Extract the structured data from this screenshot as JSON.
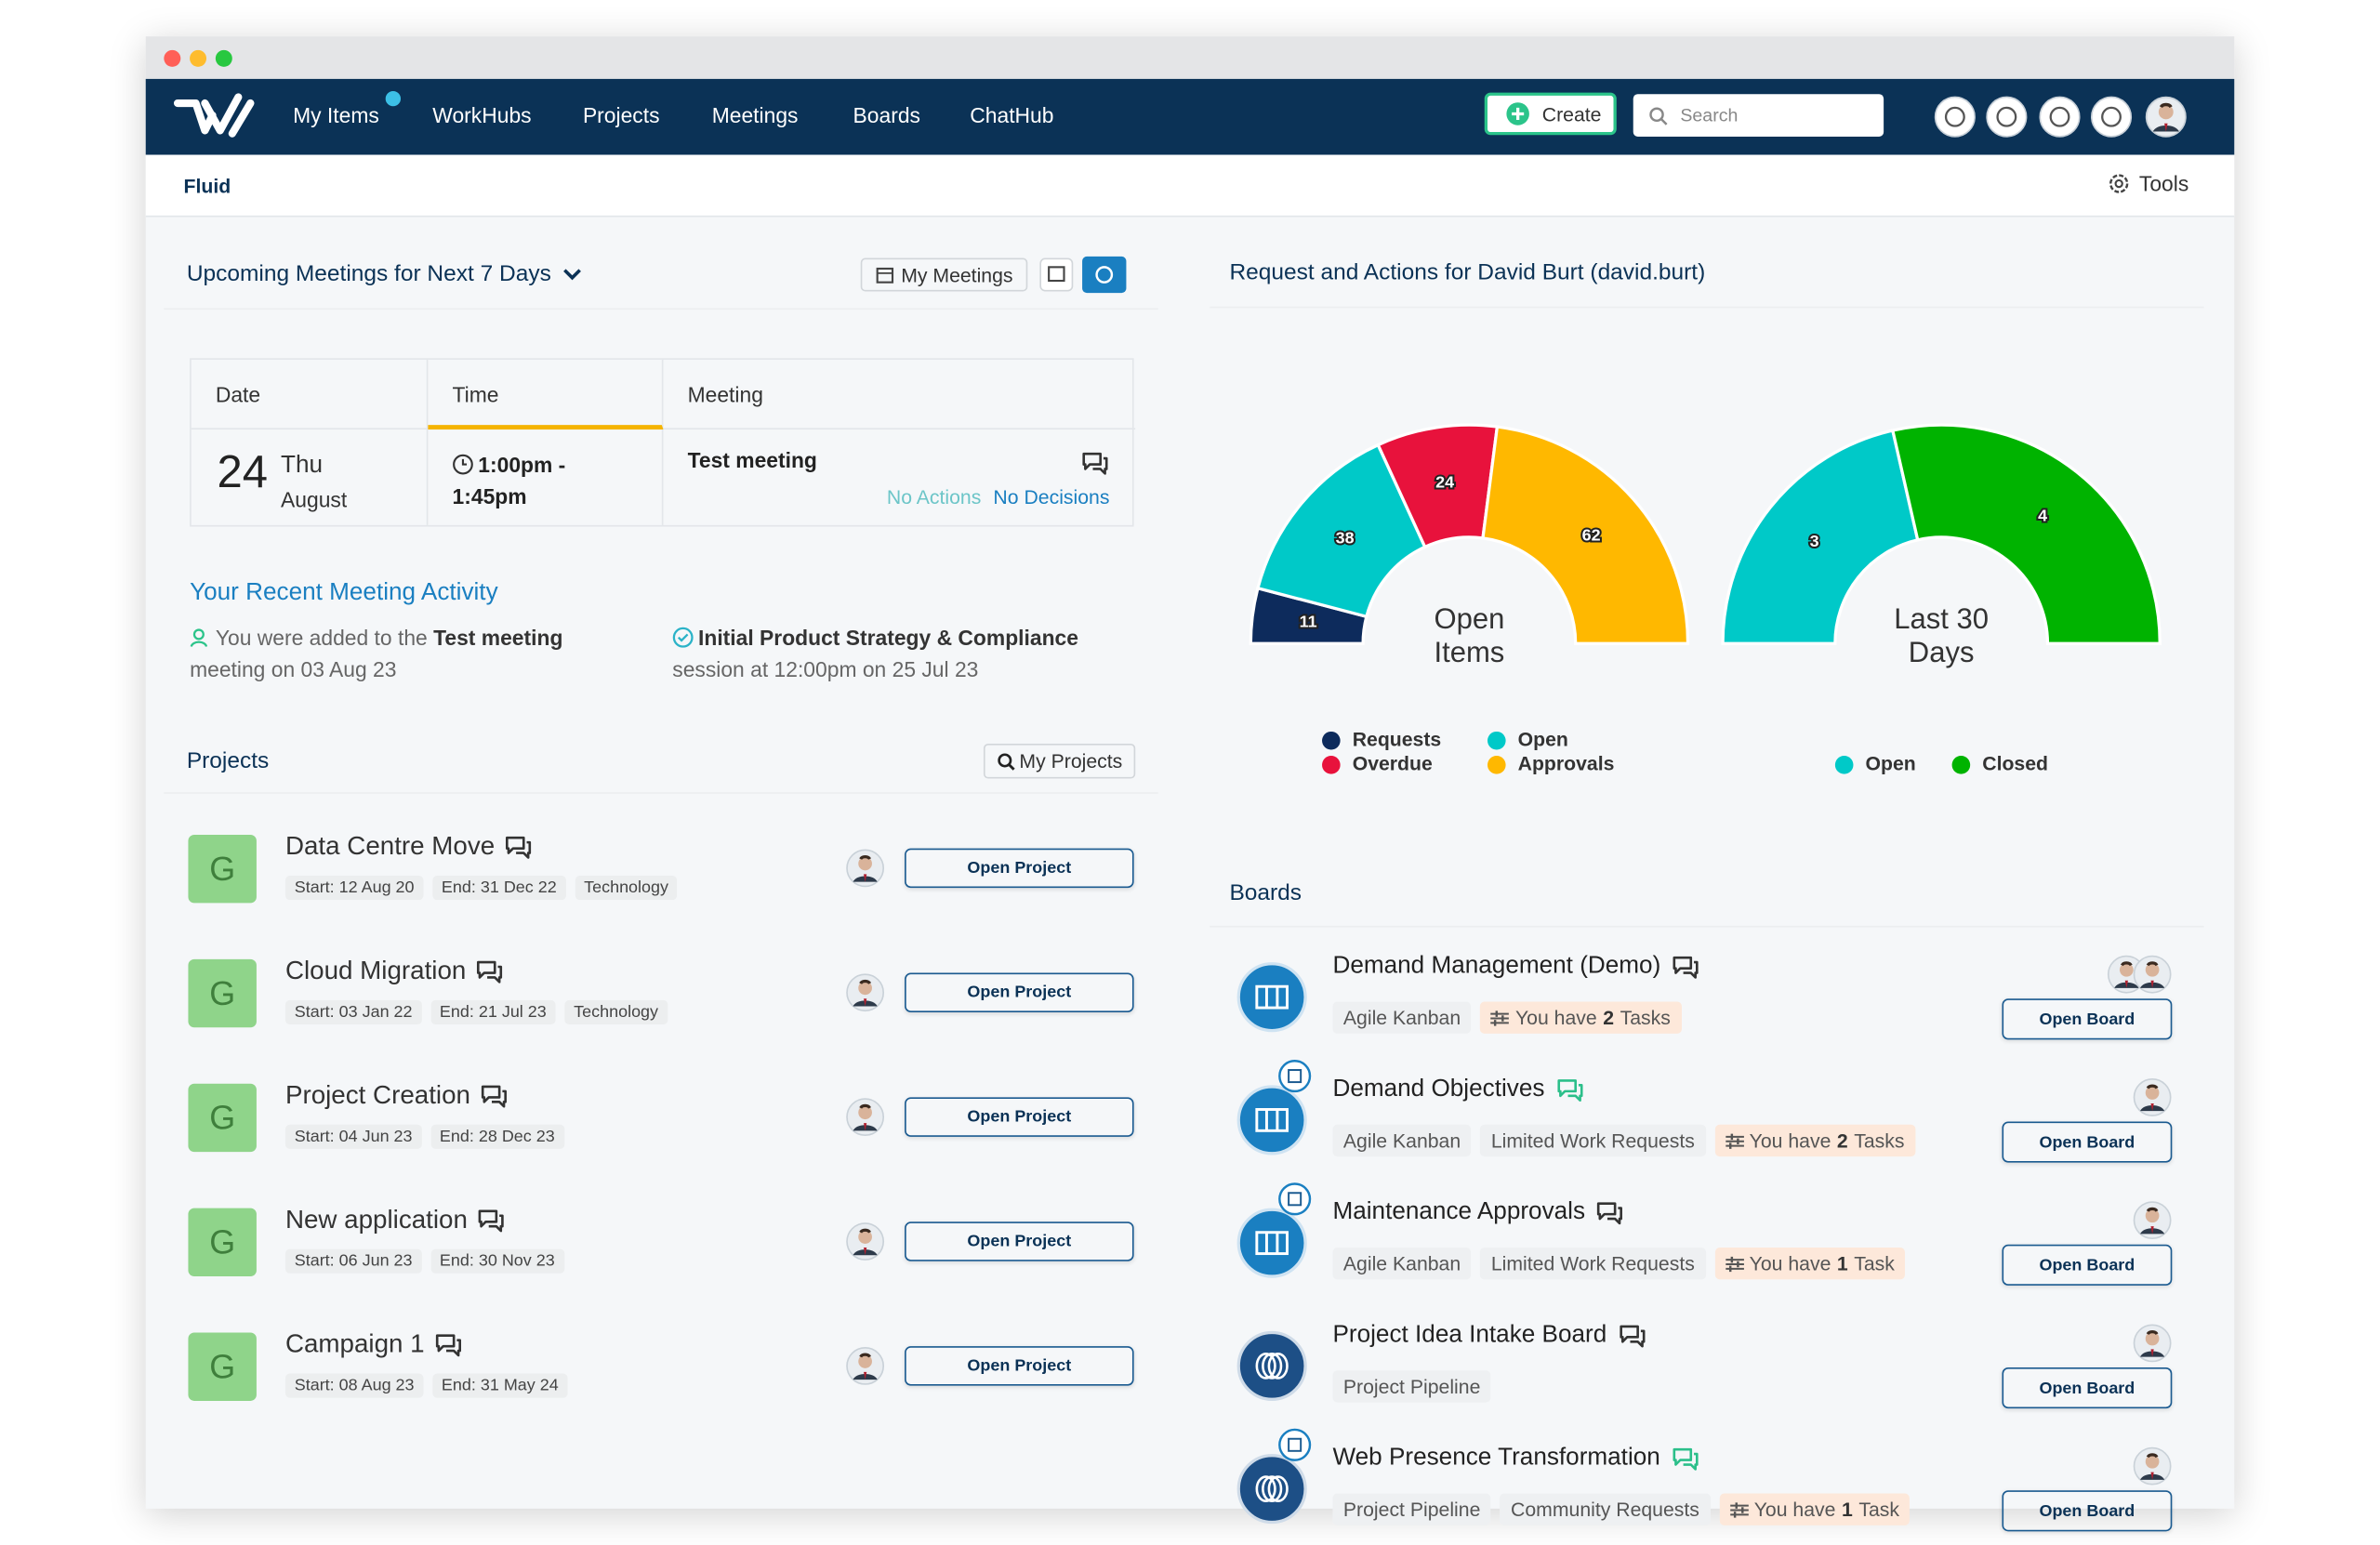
{
  "nav": {
    "items": [
      "My Items",
      "WorkHubs",
      "Projects",
      "Meetings",
      "Boards",
      "ChatHub"
    ],
    "create": "Create",
    "search": "Search"
  },
  "subbar": {
    "title": "Fluid",
    "tools": "Tools"
  },
  "meetings": {
    "title": "Upcoming Meetings for Next 7 Days",
    "button": "My Meetings",
    "columns": [
      "Date",
      "Time",
      "Meeting"
    ],
    "row": {
      "day": "24",
      "weekday": "Thu",
      "month": "August",
      "time": "1:00pm - 1:45pm",
      "meeting": "Test meeting",
      "actions": "No Actions",
      "decisions": "No Decisions"
    }
  },
  "activity": {
    "title": "Your Recent Meeting Activity",
    "items": [
      {
        "text": "You were added to the",
        "bold": "Test meeting",
        "detail": "meeting on 03 Aug 23"
      },
      {
        "bold": "Initial Product Strategy & Compliance",
        "detail": "session at 12:00pm on 25 Jul 23"
      }
    ]
  },
  "projects": {
    "title": "Projects",
    "button": "My Projects",
    "action": "Open Project",
    "items": [
      {
        "letter": "G",
        "name": "Data Centre Move",
        "tags": [
          "Start: 12 Aug 20",
          "End: 31 Dec 22",
          "Technology"
        ]
      },
      {
        "letter": "G",
        "name": "Cloud Migration",
        "tags": [
          "Start: 03 Jan 22",
          "End: 21 Jul 23",
          "Technology"
        ]
      },
      {
        "letter": "G",
        "name": "Project Creation",
        "tags": [
          "Start: 04 Jun 23",
          "End: 28 Dec 23"
        ]
      },
      {
        "letter": "G",
        "name": "New application",
        "tags": [
          "Start: 06 Jun 23",
          "End: 30 Nov 23"
        ]
      },
      {
        "letter": "G",
        "name": "Campaign 1",
        "tags": [
          "Start: 08 Aug 23",
          "End: 31 May 24"
        ]
      }
    ]
  },
  "requests": {
    "title": "Request and Actions for David Burt (david.burt)"
  },
  "chart_data": [
    {
      "type": "donut",
      "title": "Open Items",
      "categories": [
        "Requests",
        "Open",
        "Overdue",
        "Approvals"
      ],
      "values": [
        11,
        38,
        24,
        62
      ],
      "colors": [
        "#0d2b5c",
        "#00c9c8",
        "#e8123c",
        "#ffb800"
      ]
    },
    {
      "type": "donut",
      "title": "Last 30 Days",
      "categories": [
        "Open",
        "Closed"
      ],
      "values": [
        3,
        4
      ],
      "colors": [
        "#00c9c8",
        "#00b300"
      ]
    }
  ],
  "boards": {
    "title": "Boards",
    "action": "Open Board",
    "items": [
      {
        "name": "Demand Management (Demo)",
        "tags": [
          "Agile Kanban"
        ],
        "task": {
          "prefix": "You have",
          "count": "2",
          "suffix": "Tasks"
        }
      },
      {
        "name": "Demand Objectives",
        "tags": [
          "Agile Kanban",
          "Limited Work Requests"
        ],
        "task": {
          "prefix": "You have",
          "count": "2",
          "suffix": "Tasks"
        }
      },
      {
        "name": "Maintenance Approvals",
        "tags": [
          "Agile Kanban",
          "Limited Work Requests"
        ],
        "task": {
          "prefix": "You have",
          "count": "1",
          "suffix": "Task"
        }
      },
      {
        "name": "Project Idea Intake Board",
        "tags": [
          "Project Pipeline"
        ]
      },
      {
        "name": "Web Presence Transformation",
        "tags": [
          "Project Pipeline",
          "Community Requests"
        ],
        "task": {
          "prefix": "You have",
          "count": "1",
          "suffix": "Task"
        }
      }
    ]
  }
}
